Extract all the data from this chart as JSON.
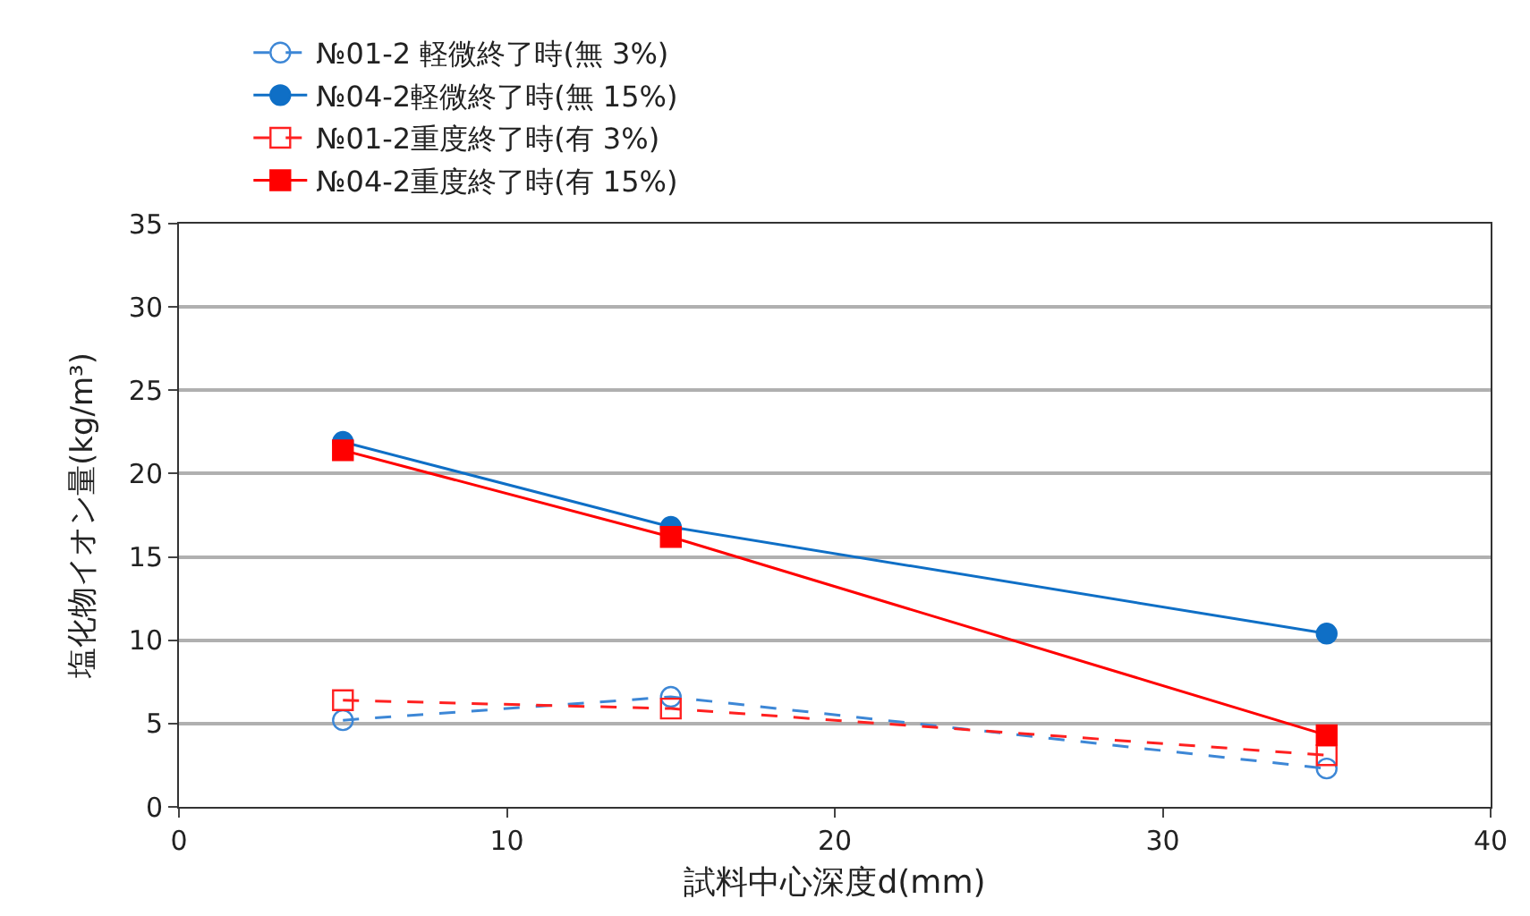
{
  "chart_data": {
    "type": "line",
    "xlabel": "試料中心深度d(mm)",
    "ylabel": "塩化物イオン量(kg/m³)",
    "xlim": [
      0,
      40
    ],
    "xticks": [
      0,
      10,
      20,
      30,
      40
    ],
    "ylim": [
      0,
      35
    ],
    "yticks": [
      0,
      5,
      10,
      15,
      20,
      25,
      30,
      35
    ],
    "grid": "y",
    "legend": "top",
    "x": [
      5,
      15,
      35
    ],
    "series": [
      {
        "name": "№01-2 軽微終了時(無 3%)",
        "color": "#3d87d6",
        "values": [
          5.2,
          6.6,
          2.3
        ],
        "marker": "circle-open",
        "line_style": "dashed"
      },
      {
        "name": "№04-2軽微終了時(無 15%)",
        "color": "#0f6fc6",
        "values": [
          21.9,
          16.8,
          10.4
        ],
        "marker": "circle",
        "line_style": "solid"
      },
      {
        "name": "№01-2重度終了時(有 3%)",
        "color": "#ff2020",
        "values": [
          6.4,
          5.9,
          3.1
        ],
        "marker": "square-open",
        "line_style": "dashed"
      },
      {
        "name": "№04-2重度終了時(有 15%)",
        "color": "#ff0000",
        "values": [
          21.4,
          16.2,
          4.3
        ],
        "marker": "square",
        "line_style": "solid"
      }
    ]
  }
}
